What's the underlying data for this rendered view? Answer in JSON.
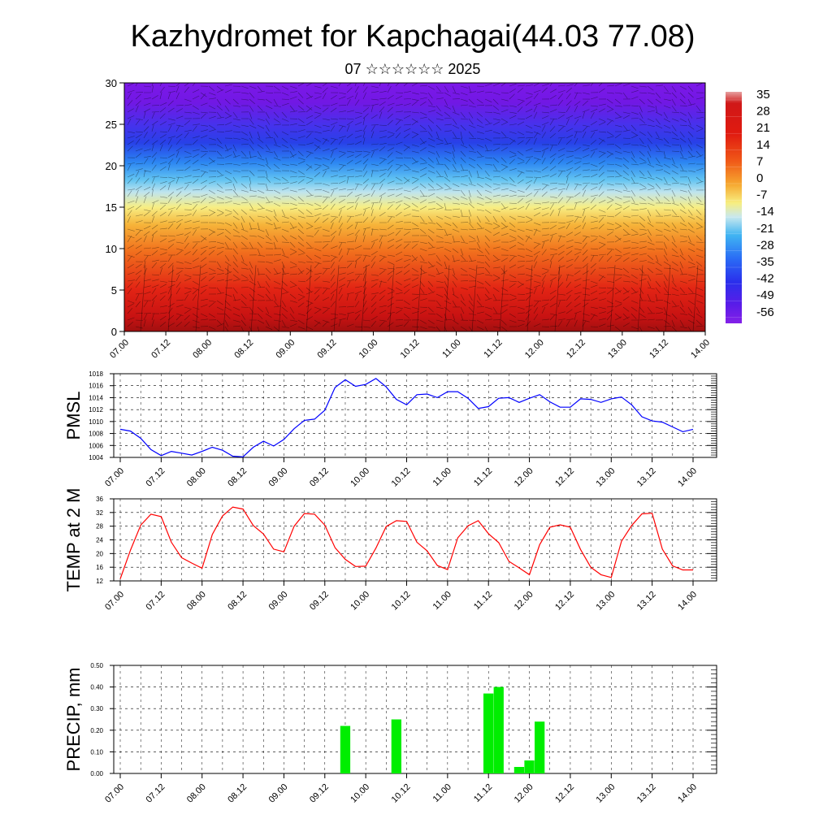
{
  "header": {
    "title": "Kazhydromet for Kapchagai(44.03 77.08)",
    "subtitle": "07 ☆☆☆☆☆☆ 2025"
  },
  "time_ticks": [
    "07.00",
    "07.12",
    "08.00",
    "08.12",
    "09.00",
    "09.12",
    "10.00",
    "10.12",
    "11.00",
    "11.12",
    "12.00",
    "12.12",
    "13.00",
    "13.12",
    "14.00"
  ],
  "colors": {
    "pmsl_line": "#0000ff",
    "temp_line": "#ff0000",
    "precip_bar": "#00ee00",
    "colormap": [
      "#7b16e6",
      "#3a1cf0",
      "#2a6cf5",
      "#36b4f0",
      "#b8e4f0",
      "#f7f07a",
      "#f7b43a",
      "#f45a1a",
      "#e01010",
      "#c01010",
      "#d88080"
    ]
  },
  "chart_data": [
    {
      "type": "heatmap",
      "name": "vertical-cross-section",
      "ylim": [
        0,
        30
      ],
      "yticks": [
        0,
        5,
        10,
        15,
        20,
        25,
        30
      ],
      "colorbar": {
        "labels": [
          "35",
          "28",
          "21",
          "14",
          "7",
          "0",
          "-7",
          "-14",
          "-21",
          "-28",
          "-35",
          "-42",
          "-49",
          "-56"
        ],
        "range": [
          -60,
          38
        ]
      },
      "description_levels": [
        {
          "level_km": 0,
          "value": 32
        },
        {
          "level_km": 5,
          "value": 25
        },
        {
          "level_km": 10,
          "value": 14
        },
        {
          "level_km": 14,
          "value": 0
        },
        {
          "level_km": 16,
          "value": -14
        },
        {
          "level_km": 19,
          "value": -35
        },
        {
          "level_km": 23,
          "value": -56
        },
        {
          "level_km": 26,
          "value": -52
        },
        {
          "level_km": 30,
          "value": -58
        }
      ]
    },
    {
      "type": "line",
      "name": "pmsl",
      "ylabel": "PMSL",
      "ylim": [
        1004,
        1018
      ],
      "yticks": [
        "1004",
        "1006",
        "1008",
        "1010",
        "1012",
        "1014",
        "1016",
        "1018"
      ],
      "x": [
        0,
        3,
        6,
        9,
        12,
        15,
        18,
        21,
        24,
        27,
        30,
        33,
        36,
        39,
        42,
        45,
        48,
        51,
        54,
        57,
        60,
        63,
        66,
        69,
        72,
        75,
        78,
        81,
        84,
        87,
        90,
        93,
        96,
        99,
        102,
        105,
        108,
        111,
        114,
        117,
        120,
        123,
        126,
        129,
        132,
        135,
        138,
        141,
        144,
        147,
        150,
        153,
        156,
        159,
        162,
        165,
        168
      ],
      "values": [
        1008.7,
        1008.4,
        1007.2,
        1005.3,
        1004.3,
        1005.0,
        1004.7,
        1004.4,
        1005.0,
        1005.7,
        1005.2,
        1004.2,
        1004.1,
        1005.7,
        1006.7,
        1005.9,
        1007.0,
        1008.8,
        1010.2,
        1010.4,
        1011.9,
        1015.7,
        1017.0,
        1015.9,
        1016.2,
        1017.2,
        1015.8,
        1013.7,
        1012.8,
        1014.5,
        1014.6,
        1014.0,
        1015.0,
        1015.0,
        1013.9,
        1012.2,
        1012.5,
        1013.9,
        1014.0,
        1013.2,
        1013.9,
        1014.5,
        1013.3,
        1012.4,
        1012.4,
        1013.8,
        1013.7,
        1013.2,
        1013.8,
        1014.1,
        1012.8,
        1010.8,
        1010.1,
        1009.9,
        1009.1,
        1008.3,
        1008.7
      ]
    },
    {
      "type": "line",
      "name": "temp-2m",
      "ylabel": "TEMP at 2 M",
      "ylim": [
        12,
        36
      ],
      "yticks": [
        "12",
        "16",
        "20",
        "24",
        "28",
        "32",
        "36"
      ],
      "x": [
        0,
        3,
        6,
        9,
        12,
        15,
        18,
        21,
        24,
        27,
        30,
        33,
        36,
        39,
        42,
        45,
        48,
        51,
        54,
        57,
        60,
        63,
        66,
        69,
        72,
        75,
        78,
        81,
        84,
        87,
        90,
        93,
        96,
        99,
        102,
        105,
        108,
        111,
        114,
        117,
        120,
        123,
        126,
        129,
        132,
        135,
        138,
        141,
        144,
        147,
        150,
        153,
        156,
        159,
        162,
        165,
        168
      ],
      "values": [
        12.6,
        21.0,
        28.3,
        31.5,
        30.8,
        23.3,
        18.8,
        17.2,
        15.7,
        25.6,
        31.0,
        33.6,
        33.0,
        28.2,
        25.7,
        21.3,
        20.5,
        28.0,
        31.7,
        31.5,
        28.3,
        21.7,
        18.3,
        16.2,
        16.3,
        21.6,
        27.9,
        29.6,
        29.4,
        23.3,
        20.8,
        16.5,
        15.3,
        24.6,
        28.1,
        29.6,
        25.8,
        23.2,
        17.7,
        15.8,
        13.8,
        22.6,
        27.7,
        28.4,
        27.7,
        21.2,
        16.0,
        13.8,
        13.0,
        23.6,
        28.2,
        31.6,
        31.8,
        21.3,
        16.4,
        15.2,
        15.2
      ]
    },
    {
      "type": "bar",
      "name": "precip",
      "ylabel": "PRECIP, mm",
      "ylim": [
        0,
        0.5
      ],
      "yticks": [
        "0.00",
        "0.10",
        "0.20",
        "0.30",
        "0.40",
        "0.50"
      ],
      "bars": [
        {
          "x": 66,
          "value": 0.22
        },
        {
          "x": 81,
          "value": 0.25
        },
        {
          "x": 108,
          "value": 0.37
        },
        {
          "x": 111,
          "value": 0.4
        },
        {
          "x": 117,
          "value": 0.03
        },
        {
          "x": 120,
          "value": 0.06
        },
        {
          "x": 123,
          "value": 0.24
        }
      ]
    }
  ]
}
